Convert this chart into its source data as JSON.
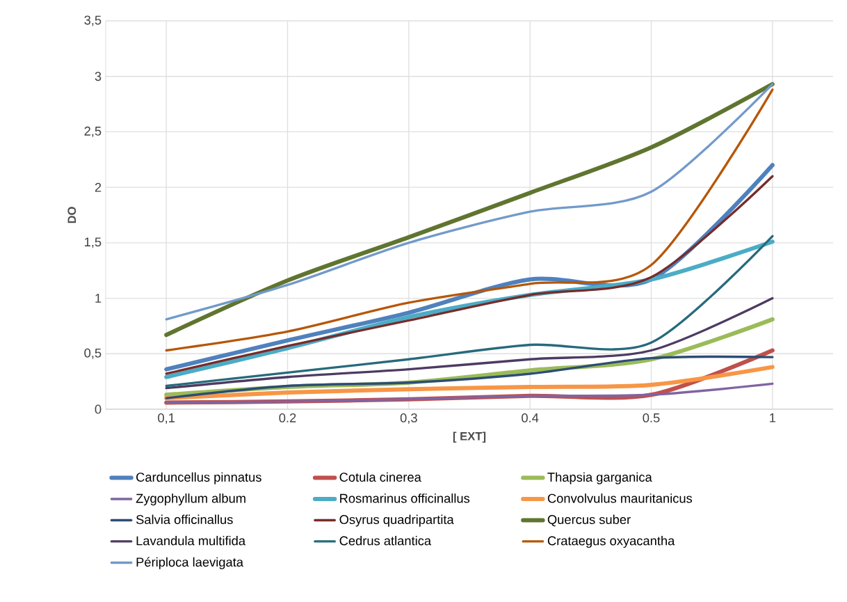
{
  "chart_data": {
    "type": "line",
    "xlabel": "[ EXT]",
    "ylabel": "DO",
    "categories": [
      "0,1",
      "0.2",
      "0,3",
      "0.4",
      "0.5",
      "1"
    ],
    "ylim": [
      0,
      3.5
    ],
    "yticks": [
      0,
      {
        "value": 0.5,
        "label": "0,5"
      },
      1,
      {
        "value": 1.5,
        "label": "1,5"
      },
      2,
      {
        "value": 2.5,
        "label": "2,5"
      },
      3,
      {
        "value": 3.5,
        "label": "3,5"
      }
    ],
    "grid": true,
    "legend": "bottom",
    "marker": "none",
    "line_style": "solid",
    "series": [
      {
        "name": "Carduncellus pinnatus",
        "color": "#4f81bd",
        "values": [
          0.36,
          0.62,
          0.87,
          1.17,
          1.17,
          2.2
        ]
      },
      {
        "name": "Cotula cinerea",
        "color": "#c0504d",
        "values": [
          0.06,
          0.07,
          0.09,
          0.12,
          0.13,
          0.53
        ]
      },
      {
        "name": "Thapsia garganica",
        "color": "#9bbb59",
        "values": [
          0.13,
          0.2,
          0.24,
          0.35,
          0.45,
          0.81
        ]
      },
      {
        "name": "Zygophyllum album",
        "color": "#8064a2",
        "values": [
          0.06,
          0.07,
          0.09,
          0.12,
          0.13,
          0.23
        ]
      },
      {
        "name": "Rosmarinus officinallus",
        "color": "#4bacc6",
        "values": [
          0.29,
          0.55,
          0.83,
          1.03,
          1.17,
          1.51
        ]
      },
      {
        "name": "Convolvulus mauritanicus",
        "color": "#f79646",
        "values": [
          0.1,
          0.15,
          0.18,
          0.2,
          0.22,
          0.38
        ]
      },
      {
        "name": "Salvia officinallus",
        "color": "#2c4d75",
        "values": [
          0.1,
          0.21,
          0.24,
          0.32,
          0.46,
          0.47
        ]
      },
      {
        "name": "Osyrus quadripartita",
        "color": "#772c2a",
        "values": [
          0.32,
          0.57,
          0.8,
          1.03,
          1.19,
          2.1
        ]
      },
      {
        "name": "Quercus suber",
        "color": "#5f7530",
        "values": [
          0.67,
          1.16,
          1.55,
          1.95,
          2.36,
          2.93
        ]
      },
      {
        "name": "Lavandula multifida",
        "color": "#4d3b62",
        "values": [
          0.19,
          0.29,
          0.36,
          0.45,
          0.53,
          1.0
        ]
      },
      {
        "name": "Cedrus atlantica",
        "color": "#276a7c",
        "values": [
          0.21,
          0.33,
          0.45,
          0.58,
          0.6,
          1.56
        ]
      },
      {
        "name": "Crataegus oxyacantha",
        "color": "#b65708",
        "values": [
          0.53,
          0.7,
          0.96,
          1.13,
          1.3,
          2.88
        ]
      },
      {
        "name": "Périploca laevigata",
        "color": "#729aca",
        "values": [
          0.81,
          1.12,
          1.5,
          1.78,
          1.96,
          2.93
        ]
      }
    ]
  }
}
